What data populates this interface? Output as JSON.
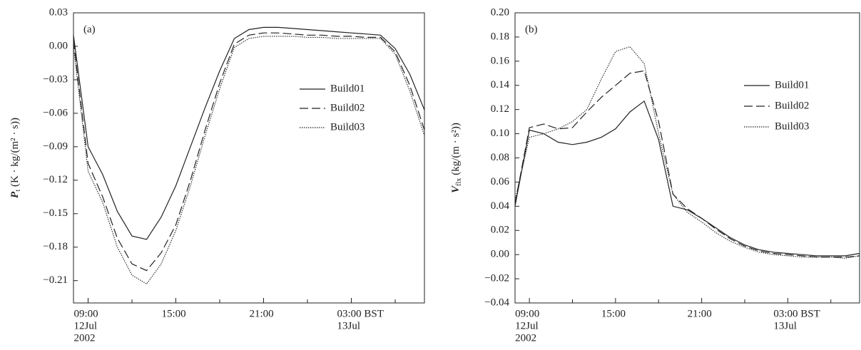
{
  "chart_data": [
    {
      "type": "line",
      "panel_label": "(a)",
      "ylabel": {
        "symbol": "P",
        "subscript": "t",
        "unit": "(K · kg/(m² · s))"
      },
      "x": [
        8,
        9,
        10,
        11,
        12,
        13,
        14,
        15,
        16,
        17,
        18,
        19,
        20,
        21,
        22,
        23,
        24,
        25,
        26,
        27,
        28,
        29,
        30,
        31,
        32
      ],
      "xlim": [
        8,
        32
      ],
      "xticks": [
        {
          "value": 9,
          "label": "09:00",
          "sublabels": [
            "12Jul",
            "2002"
          ]
        },
        {
          "value": 15,
          "label": "15:00"
        },
        {
          "value": 21,
          "label": "21:00"
        },
        {
          "value": 27,
          "label": "03:00  BST",
          "sublabels": [
            "13Jul"
          ]
        }
      ],
      "minor_xticks": [
        12,
        18,
        24,
        30
      ],
      "ylim": [
        -0.23,
        0.03
      ],
      "yticks": [
        0.03,
        {
          "value": 0,
          "label": "0.00"
        },
        {
          "value": -0.03,
          "label": "−0.03"
        },
        {
          "value": -0.06,
          "label": "−0.06"
        },
        {
          "value": -0.09,
          "label": "−0.09"
        },
        {
          "value": -0.12,
          "label": "−0.12"
        },
        {
          "value": -0.15,
          "label": "−0.15"
        },
        {
          "value": -0.18,
          "label": "−0.18"
        },
        {
          "value": -0.21,
          "label": "−0.21"
        }
      ],
      "series": [
        {
          "name": "Build01",
          "color": "#222222",
          "dash": "solid",
          "values": [
            0.01,
            -0.09,
            -0.115,
            -0.148,
            -0.17,
            -0.173,
            -0.153,
            -0.125,
            -0.09,
            -0.055,
            -0.022,
            0.007,
            0.015,
            0.017,
            0.017,
            0.016,
            0.015,
            0.014,
            0.013,
            0.012,
            0.011,
            0.01,
            -0.002,
            -0.025,
            -0.057
          ]
        },
        {
          "name": "Build02",
          "color": "#222222",
          "dash": "dashed",
          "values": [
            0.005,
            -0.105,
            -0.135,
            -0.172,
            -0.195,
            -0.201,
            -0.185,
            -0.16,
            -0.12,
            -0.075,
            -0.033,
            0.002,
            0.01,
            0.012,
            0.012,
            0.011,
            0.01,
            0.01,
            0.009,
            0.009,
            0.008,
            0.008,
            -0.005,
            -0.035,
            -0.075
          ]
        },
        {
          "name": "Build03",
          "color": "#222222",
          "dash": "dotted",
          "values": [
            0,
            -0.112,
            -0.14,
            -0.18,
            -0.205,
            -0.213,
            -0.195,
            -0.165,
            -0.125,
            -0.08,
            -0.038,
            -0.001,
            0.007,
            0.009,
            0.009,
            0.009,
            0.008,
            0.008,
            0.007,
            0.007,
            0.007,
            0.007,
            -0.007,
            -0.04,
            -0.08
          ]
        }
      ]
    },
    {
      "type": "line",
      "panel_label": "(b)",
      "ylabel": {
        "symbol": "V",
        "subscript": "flx",
        "unit": "(kg/(m · s²))"
      },
      "x": [
        8,
        9,
        10,
        11,
        12,
        13,
        14,
        15,
        16,
        17,
        18,
        19,
        20,
        21,
        22,
        23,
        24,
        25,
        26,
        27,
        28,
        29,
        30,
        31,
        32
      ],
      "xlim": [
        8,
        32
      ],
      "xticks": [
        {
          "value": 9,
          "label": "09:00",
          "sublabels": [
            "12Jul",
            "2002"
          ]
        },
        {
          "value": 15,
          "label": "15:00"
        },
        {
          "value": 21,
          "label": "21:00"
        },
        {
          "value": 27,
          "label": "03:00  BST",
          "sublabels": [
            "13Jul"
          ]
        }
      ],
      "minor_xticks": [
        12,
        18,
        24,
        30
      ],
      "ylim": [
        -0.04,
        0.2
      ],
      "yticks": [
        {
          "value": 0.2,
          "label": "0.20"
        },
        0.18,
        0.16,
        0.14,
        0.12,
        {
          "value": 0.1,
          "label": "0.10"
        },
        0.08,
        0.06,
        0.04,
        0.02,
        {
          "value": 0,
          "label": "0.00"
        },
        {
          "value": -0.02,
          "label": "−0.02"
        },
        {
          "value": -0.04,
          "label": "−0.04"
        }
      ],
      "series": [
        {
          "name": "Build01",
          "color": "#222222",
          "dash": "solid",
          "values": [
            0.04,
            0.103,
            0.1,
            0.093,
            0.091,
            0.093,
            0.097,
            0.104,
            0.118,
            0.127,
            0.095,
            0.04,
            0.037,
            0.03,
            0.022,
            0.014,
            0.008,
            0.004,
            0.002,
            0.001,
            0,
            -0.001,
            -0.001,
            -0.001,
            0.001
          ]
        },
        {
          "name": "Build02",
          "color": "#222222",
          "dash": "dashed",
          "values": [
            0.042,
            0.105,
            0.108,
            0.104,
            0.105,
            0.118,
            0.13,
            0.14,
            0.15,
            0.152,
            0.11,
            0.05,
            0.038,
            0.03,
            0.021,
            0.013,
            0.007,
            0.003,
            0.001,
            0,
            -0.001,
            -0.002,
            -0.002,
            -0.002,
            -0.001
          ]
        },
        {
          "name": "Build03",
          "color": "#222222",
          "dash": "dotted",
          "values": [
            0.045,
            0.097,
            0.1,
            0.104,
            0.11,
            0.12,
            0.145,
            0.168,
            0.172,
            0.158,
            0.1,
            0.05,
            0.035,
            0.027,
            0.018,
            0.011,
            0.006,
            0.002,
            0,
            -0.001,
            -0.002,
            -0.002,
            -0.002,
            -0.003,
            -0.001
          ]
        }
      ]
    }
  ]
}
